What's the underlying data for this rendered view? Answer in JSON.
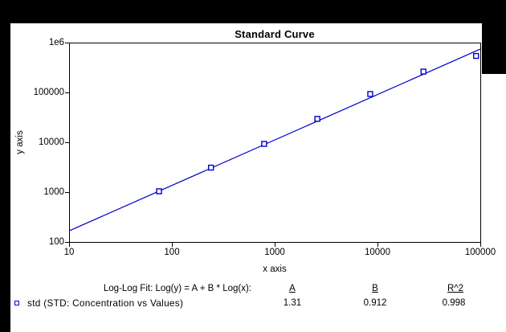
{
  "window": {
    "background": "#000000",
    "chart_background": "#ffffff"
  },
  "chart_data": {
    "type": "scatter",
    "title": "Standard Curve",
    "xlabel": "x axis",
    "ylabel": "y axis",
    "x_scale": "log",
    "y_scale": "log",
    "xlim": [
      10,
      100000
    ],
    "ylim": [
      100,
      1000000
    ],
    "x_tick_labels": [
      "10",
      "100",
      "1000",
      "10000",
      "100000"
    ],
    "y_tick_labels": [
      "100",
      "1000",
      "10000",
      "100000",
      "1e6"
    ],
    "grid": false,
    "legend_position": "bottom-left",
    "series": [
      {
        "name": "std (STD: Concentration vs Values)",
        "marker": "open-square",
        "color": "#0000cc",
        "points": [
          [
            75,
            1040
          ],
          [
            240,
            3100
          ],
          [
            790,
            9300
          ],
          [
            2600,
            29500
          ],
          [
            8500,
            93000
          ],
          [
            28000,
            262000
          ],
          [
            91000,
            540000
          ]
        ]
      }
    ],
    "fit_line": {
      "equation": "Log(y) = A + B * Log(x)",
      "A": 1.31,
      "B": 0.912,
      "R2": 0.998,
      "color": "#0000cc"
    }
  },
  "fit_table": {
    "label": "Log-Log Fit: Log(y) = A + B * Log(x):",
    "col_a": "A",
    "col_b": "B",
    "col_r2": "R^2",
    "row": {
      "legend": "std (STD: Concentration vs Values)",
      "a": "1.31",
      "b": "0.912",
      "r2": "0.998"
    }
  }
}
